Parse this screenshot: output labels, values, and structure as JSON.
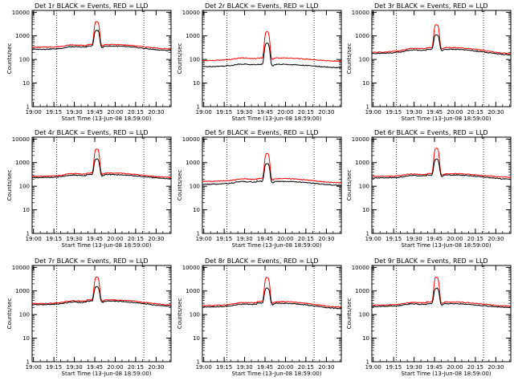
{
  "colors": {
    "events": "#000000",
    "lld": "#ff0000",
    "frame": "#000000",
    "background": "#ffffff"
  },
  "chart_data": [
    {
      "type": "line",
      "title": "Det 1r BLACK = Events, RED = LLD",
      "marker": "L",
      "xlabel": "Start Time (13-Jun-08 18:59:00)",
      "ylabel": "Counts/sec",
      "xticks": [
        "19:00",
        "19:15",
        "19:30",
        "19:45",
        "20:00",
        "20:15",
        "20:30"
      ],
      "yticks": [
        "1",
        "10",
        "100",
        "1000",
        "10000"
      ],
      "xlim_min": [
        0,
        102
      ],
      "ylim": [
        1,
        12000
      ],
      "yscale": "log",
      "vlines_min": [
        18,
        82
      ],
      "profile": {
        "events": {
          "base_start": 270,
          "base_mid": 370,
          "base_end": 240,
          "peak": 1700,
          "pre": 300
        },
        "lld": {
          "base_start": 330,
          "base_mid": 430,
          "base_end": 280,
          "peak": 4000,
          "pre": 360
        }
      },
      "series": [
        {
          "name": "BLACK = Events"
        },
        {
          "name": "RED = LLD"
        }
      ]
    },
    {
      "type": "line",
      "title": "Det 2r BLACK = Events, RED = LLD",
      "marker": "L",
      "xlabel": "Start Time (13-Jun-08 18:59:00)",
      "ylabel": "Counts/sec",
      "xticks": [
        "19:00",
        "19:15",
        "19:30",
        "19:45",
        "20:00",
        "20:15",
        "20:30"
      ],
      "yticks": [
        "1",
        "10",
        "100",
        "1000",
        "10000"
      ],
      "xlim_min": [
        0,
        102
      ],
      "ylim": [
        1,
        12000
      ],
      "yscale": "log",
      "vlines_min": [
        18,
        82
      ],
      "profile": {
        "events": {
          "base_start": 50,
          "base_mid": 62,
          "base_end": 45,
          "peak": 500,
          "pre": 58
        },
        "lld": {
          "base_start": 90,
          "base_mid": 115,
          "base_end": 85,
          "peak": 1500,
          "pre": 105
        }
      },
      "series": [
        {
          "name": "BLACK = Events"
        },
        {
          "name": "RED = LLD"
        }
      ]
    },
    {
      "type": "line",
      "title": "Det 3r BLACK = Events, RED = LLD",
      "marker": "L",
      "xlabel": "Start Time (13-Jun-08 18:59:00)",
      "ylabel": "Counts/sec",
      "xticks": [
        "19:00",
        "19:15",
        "19:30",
        "19:45",
        "20:00",
        "20:15",
        "20:30"
      ],
      "yticks": [
        "1",
        "10",
        "100",
        "1000",
        "10000"
      ],
      "xlim_min": [
        0,
        102
      ],
      "ylim": [
        1,
        12000
      ],
      "yscale": "log",
      "vlines_min": [
        18,
        82
      ],
      "profile": {
        "events": {
          "base_start": 180,
          "base_mid": 270,
          "base_end": 160,
          "peak": 1100,
          "pre": 220
        },
        "lld": {
          "base_start": 200,
          "base_mid": 320,
          "base_end": 180,
          "peak": 3000,
          "pre": 260
        }
      },
      "series": [
        {
          "name": "BLACK = Events"
        },
        {
          "name": "RED = LLD"
        }
      ]
    },
    {
      "type": "line",
      "title": "Det 4r BLACK = Events, RED = LLD",
      "marker": "L",
      "xlabel": "Start Time (13-Jun-08 18:59:00)",
      "ylabel": "Counts/sec",
      "xticks": [
        "19:00",
        "19:15",
        "19:30",
        "19:45",
        "20:00",
        "20:15",
        "20:30"
      ],
      "yticks": [
        "1",
        "10",
        "100",
        "1000",
        "10000"
      ],
      "xlim_min": [
        0,
        102
      ],
      "ylim": [
        1,
        12000
      ],
      "yscale": "log",
      "vlines_min": [
        18,
        82
      ],
      "profile": {
        "events": {
          "base_start": 230,
          "base_mid": 310,
          "base_end": 210,
          "peak": 1400,
          "pre": 260
        },
        "lld": {
          "base_start": 260,
          "base_mid": 360,
          "base_end": 240,
          "peak": 3800,
          "pre": 300
        }
      },
      "series": [
        {
          "name": "BLACK = Events"
        },
        {
          "name": "RED = LLD"
        }
      ]
    },
    {
      "type": "line",
      "title": "Det 5r BLACK = Events, RED = LLD",
      "marker": "L",
      "xlabel": "Start Time (13-Jun-08 18:59:00)",
      "ylabel": "Counts/sec",
      "xticks": [
        "19:00",
        "19:15",
        "19:30",
        "19:45",
        "20:00",
        "20:15",
        "20:30"
      ],
      "yticks": [
        "1",
        "10",
        "100",
        "1000",
        "10000"
      ],
      "xlim_min": [
        0,
        102
      ],
      "ylim": [
        1,
        12000
      ],
      "yscale": "log",
      "vlines_min": [
        18,
        82
      ],
      "profile": {
        "events": {
          "base_start": 120,
          "base_mid": 160,
          "base_end": 110,
          "peak": 900,
          "pre": 140
        },
        "lld": {
          "base_start": 160,
          "base_mid": 210,
          "base_end": 140,
          "peak": 2400,
          "pre": 180
        }
      },
      "series": [
        {
          "name": "BLACK = Events"
        },
        {
          "name": "RED = LLD"
        }
      ]
    },
    {
      "type": "line",
      "title": "Det 6r BLACK = Events, RED = LLD",
      "marker": "L",
      "xlabel": "Start Time (13-Jun-08 18:59:00)",
      "ylabel": "Counts/sec",
      "xticks": [
        "19:00",
        "19:15",
        "19:30",
        "19:45",
        "20:00",
        "20:15",
        "20:30"
      ],
      "yticks": [
        "1",
        "10",
        "100",
        "1000",
        "10000"
      ],
      "xlim_min": [
        0,
        102
      ],
      "ylim": [
        1,
        12000
      ],
      "yscale": "log",
      "vlines_min": [
        18,
        82
      ],
      "profile": {
        "events": {
          "base_start": 220,
          "base_mid": 300,
          "base_end": 200,
          "peak": 1400,
          "pre": 250
        },
        "lld": {
          "base_start": 260,
          "base_mid": 340,
          "base_end": 240,
          "peak": 4000,
          "pre": 290
        }
      },
      "series": [
        {
          "name": "BLACK = Events"
        },
        {
          "name": "RED = LLD"
        }
      ]
    },
    {
      "type": "line",
      "title": "Det 7r BLACK = Events, RED = LLD",
      "marker": "L",
      "xlabel": "Start Time (13-Jun-08 18:59:00)",
      "ylabel": "Counts/sec",
      "xticks": [
        "19:00",
        "19:15",
        "19:30",
        "19:45",
        "20:00",
        "20:15",
        "20:30"
      ],
      "yticks": [
        "1",
        "10",
        "100",
        "1000",
        "10000"
      ],
      "xlim_min": [
        0,
        102
      ],
      "ylim": [
        1,
        12000
      ],
      "yscale": "log",
      "vlines_min": [
        18,
        82
      ],
      "profile": {
        "events": {
          "base_start": 260,
          "base_mid": 370,
          "base_end": 230,
          "peak": 1500,
          "pre": 290
        },
        "lld": {
          "base_start": 290,
          "base_mid": 420,
          "base_end": 260,
          "peak": 3900,
          "pre": 330
        }
      },
      "series": [
        {
          "name": "BLACK = Events"
        },
        {
          "name": "RED = LLD"
        }
      ]
    },
    {
      "type": "line",
      "title": "Det 8r BLACK = Events, RED = LLD",
      "marker": "L",
      "xlabel": "Start Time (13-Jun-08 18:59:00)",
      "ylabel": "Counts/sec",
      "xticks": [
        "19:00",
        "19:15",
        "19:30",
        "19:45",
        "20:00",
        "20:15",
        "20:30"
      ],
      "yticks": [
        "1",
        "10",
        "100",
        "1000",
        "10000"
      ],
      "xlim_min": [
        0,
        102
      ],
      "ylim": [
        1,
        12000
      ],
      "yscale": "log",
      "vlines_min": [
        18,
        82
      ],
      "profile": {
        "events": {
          "base_start": 210,
          "base_mid": 300,
          "base_end": 180,
          "peak": 1300,
          "pre": 240
        },
        "lld": {
          "base_start": 240,
          "base_mid": 350,
          "base_end": 210,
          "peak": 3700,
          "pre": 280
        }
      },
      "series": [
        {
          "name": "BLACK = Events"
        },
        {
          "name": "RED = LLD"
        }
      ]
    },
    {
      "type": "line",
      "title": "Det 9r BLACK = Events, RED = LLD",
      "marker": "L",
      "xlabel": "Start Time (13-Jun-08 18:59:00)",
      "ylabel": "Counts/sec",
      "xticks": [
        "19:00",
        "19:15",
        "19:30",
        "19:45",
        "20:00",
        "20:15",
        "20:30"
      ],
      "yticks": [
        "1",
        "10",
        "100",
        "1000",
        "10000"
      ],
      "xlim_min": [
        0,
        102
      ],
      "ylim": [
        1,
        12000
      ],
      "yscale": "log",
      "vlines_min": [
        18,
        82
      ],
      "profile": {
        "events": {
          "base_start": 220,
          "base_mid": 290,
          "base_end": 200,
          "peak": 1300,
          "pre": 250
        },
        "lld": {
          "base_start": 250,
          "base_mid": 340,
          "base_end": 230,
          "peak": 3800,
          "pre": 290
        }
      },
      "series": [
        {
          "name": "BLACK = Events"
        },
        {
          "name": "RED = LLD"
        }
      ]
    }
  ]
}
